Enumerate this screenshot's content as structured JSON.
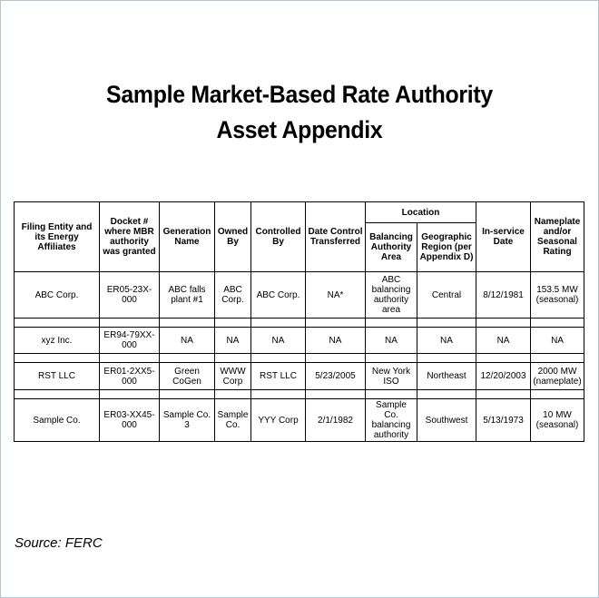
{
  "title": {
    "line1": "Sample Market-Based Rate Authority",
    "line2": "Asset Appendix"
  },
  "table": {
    "headers": {
      "filing_entity": "Filing Entity and its Energy Affiliates",
      "docket": "Docket # where MBR authority was granted",
      "generation_name": "Generation Name",
      "owned_by": "Owned By",
      "controlled_by": "Controlled By",
      "date_control": "Date Control Transferred",
      "location": "Location",
      "balancing_area": "Balancing Authority Area",
      "geo_region": "Geographic Region (per Appendix D)",
      "in_service": "In-service Date",
      "nameplate": "Nameplate and/or Seasonal Rating"
    },
    "rows": [
      {
        "entity": "ABC Corp.",
        "docket": "ER05-23X-000",
        "generation": "ABC falls plant #1",
        "owned": "ABC Corp.",
        "controlled": "ABC Corp.",
        "date_control": "NA*",
        "balancing": "ABC balancing authority area",
        "region": "Central",
        "in_service": "8/12/1981",
        "rating": "153.5 MW (seasonal)"
      },
      {
        "entity": "xyz Inc.",
        "docket": "ER94-79XX-000",
        "generation": "NA",
        "owned": "NA",
        "controlled": "NA",
        "date_control": "NA",
        "balancing": "NA",
        "region": "NA",
        "in_service": "NA",
        "rating": "NA"
      },
      {
        "entity": "RST LLC",
        "docket": "ER01-2XX5-000",
        "generation": "Green CoGen",
        "owned": "WWW Corp",
        "controlled": "RST LLC",
        "date_control": "5/23/2005",
        "balancing": "New York ISO",
        "region": "Northeast",
        "in_service": "12/20/2003",
        "rating": "2000 MW (nameplate)"
      },
      {
        "entity": "Sample Co.",
        "docket": "ER03-XX45-000",
        "generation": "Sample Co. 3",
        "owned": "Sample Co.",
        "controlled": "YYY Corp",
        "date_control": "2/1/1982",
        "balancing": "Sample Co. balancing authority",
        "region": "Southwest",
        "in_service": "5/13/1973",
        "rating": "10 MW (seasonal)"
      }
    ]
  },
  "source": "Source: FERC"
}
